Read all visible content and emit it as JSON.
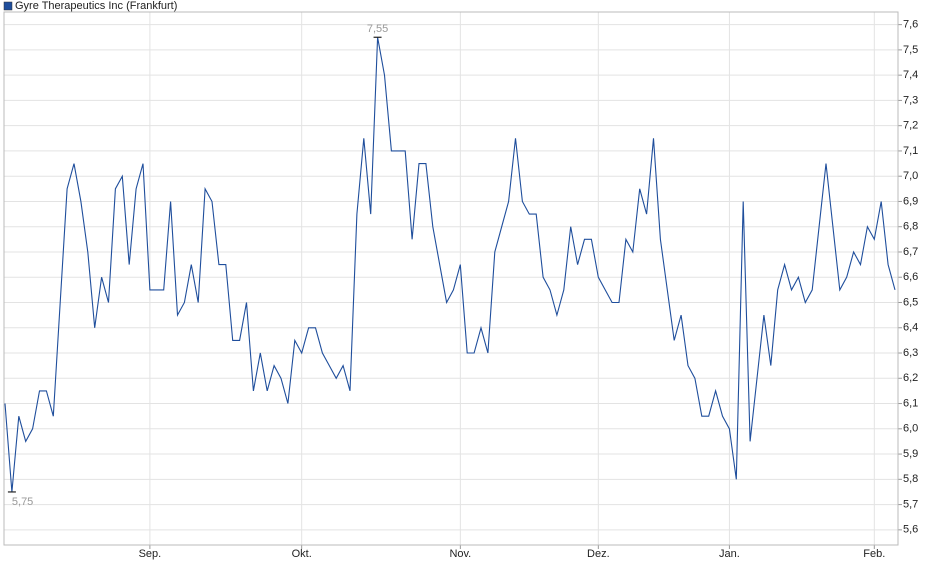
{
  "chart_data": {
    "type": "line",
    "categories": [
      null,
      null,
      null,
      null,
      null,
      null,
      null,
      null,
      null,
      null,
      null,
      null,
      null,
      null,
      null,
      null,
      null,
      null,
      null,
      null,
      null,
      "Sep.",
      null,
      null,
      null,
      null,
      null,
      null,
      null,
      null,
      null,
      null,
      null,
      null,
      null,
      null,
      null,
      null,
      null,
      null,
      null,
      null,
      null,
      "Okt.",
      null,
      null,
      null,
      null,
      null,
      null,
      null,
      null,
      null,
      null,
      null,
      null,
      null,
      null,
      null,
      null,
      null,
      null,
      null,
      null,
      null,
      null,
      "Nov.",
      null,
      null,
      null,
      null,
      null,
      null,
      null,
      null,
      null,
      null,
      null,
      null,
      null,
      null,
      null,
      null,
      null,
      null,
      null,
      "Dez.",
      null,
      null,
      null,
      null,
      null,
      null,
      null,
      null,
      null,
      null,
      null,
      null,
      null,
      null,
      null,
      null,
      null,
      null,
      "Jan.",
      null,
      null,
      null,
      null,
      null,
      null,
      null,
      null,
      null,
      null,
      null,
      null,
      null,
      null,
      null,
      null,
      null,
      null,
      null,
      null,
      "Feb.",
      null,
      null,
      null
    ],
    "series": [
      {
        "name": "Gyre Therapeutics Inc (Frankfurt)",
        "color": "#1f4e9c",
        "values": [
          6.1,
          5.75,
          6.05,
          5.95,
          6.0,
          6.15,
          6.15,
          6.05,
          6.5,
          6.95,
          7.05,
          6.9,
          6.7,
          6.4,
          6.6,
          6.5,
          6.95,
          7.0,
          6.65,
          6.95,
          7.05,
          6.55,
          6.55,
          6.55,
          6.9,
          6.45,
          6.5,
          6.65,
          6.5,
          6.95,
          6.9,
          6.65,
          6.65,
          6.35,
          6.35,
          6.5,
          6.15,
          6.3,
          6.15,
          6.25,
          6.2,
          6.1,
          6.35,
          6.3,
          6.4,
          6.4,
          6.3,
          6.25,
          6.2,
          6.25,
          6.15,
          6.85,
          7.15,
          6.85,
          7.55,
          7.4,
          7.1,
          7.1,
          7.1,
          6.75,
          7.05,
          7.05,
          6.8,
          6.65,
          6.5,
          6.55,
          6.65,
          6.3,
          6.3,
          6.4,
          6.3,
          6.7,
          6.8,
          6.9,
          7.15,
          6.9,
          6.85,
          6.85,
          6.6,
          6.55,
          6.45,
          6.55,
          6.8,
          6.65,
          6.75,
          6.75,
          6.6,
          6.55,
          6.5,
          6.5,
          6.75,
          6.7,
          6.95,
          6.85,
          7.15,
          6.75,
          6.55,
          6.35,
          6.45,
          6.25,
          6.2,
          6.05,
          6.05,
          6.15,
          6.05,
          6.0,
          5.8,
          6.9,
          5.95,
          6.2,
          6.45,
          6.25,
          6.55,
          6.65,
          6.55,
          6.6,
          6.5,
          6.55,
          6.8,
          7.05,
          6.8,
          6.55,
          6.6,
          6.7,
          6.65,
          6.8,
          6.75,
          6.9,
          6.65,
          6.55
        ]
      }
    ],
    "annotations": [
      {
        "text": "7,55",
        "value": 7.55
      },
      {
        "text": "5,75",
        "value": 5.75
      }
    ],
    "ylim": [
      5.54,
      7.65
    ],
    "yticks": [
      {
        "value": 5.6,
        "label": "5,6"
      },
      {
        "value": 5.7,
        "label": "5,7"
      },
      {
        "value": 5.8,
        "label": "5,8"
      },
      {
        "value": 5.9,
        "label": "5,9"
      },
      {
        "value": 6.0,
        "label": "6,0"
      },
      {
        "value": 6.1,
        "label": "6,1"
      },
      {
        "value": 6.2,
        "label": "6,2"
      },
      {
        "value": 6.3,
        "label": "6,3"
      },
      {
        "value": 6.4,
        "label": "6,4"
      },
      {
        "value": 6.5,
        "label": "6,5"
      },
      {
        "value": 6.6,
        "label": "6,6"
      },
      {
        "value": 6.7,
        "label": "6,7"
      },
      {
        "value": 6.8,
        "label": "6,8"
      },
      {
        "value": 6.9,
        "label": "6,9"
      },
      {
        "value": 7.0,
        "label": "7,0"
      },
      {
        "value": 7.1,
        "label": "7,1"
      },
      {
        "value": 7.2,
        "label": "7,2"
      },
      {
        "value": 7.3,
        "label": "7,3"
      },
      {
        "value": 7.4,
        "label": "7,4"
      },
      {
        "value": 7.5,
        "label": "7,5"
      },
      {
        "value": 7.6,
        "label": "7,6"
      }
    ],
    "grid": true
  }
}
